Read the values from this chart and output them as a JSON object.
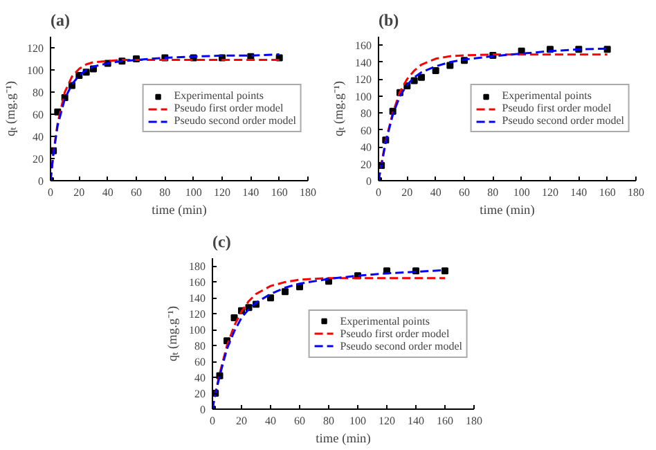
{
  "chart_data": [
    {
      "type": "line",
      "title": "(a)",
      "xlabel": "time (min)",
      "ylabel": "qₜ (mg.g⁻¹)",
      "xlim": [
        0,
        180
      ],
      "xticks": [
        0,
        20,
        40,
        60,
        80,
        100,
        120,
        140,
        160,
        180
      ],
      "ylim": [
        0,
        130
      ],
      "yticks": [
        0,
        20,
        40,
        60,
        80,
        100,
        120
      ],
      "grid": false,
      "legend": "right",
      "x": [
        0,
        2,
        5,
        10,
        15,
        20,
        25,
        30,
        40,
        50,
        60,
        80,
        100,
        120,
        140,
        160
      ],
      "series": [
        {
          "name": "Experimental points",
          "type": "scatter",
          "marker": "square",
          "color": "#000000",
          "values": [
            0,
            27,
            62,
            75,
            86,
            95,
            98,
            101,
            106,
            108,
            110,
            111,
            111,
            111,
            112,
            111
          ]
        },
        {
          "name": "Pseudo first order model",
          "line_style": "dashed",
          "color": "#ff0000",
          "values": [
            0,
            25,
            52,
            80,
            94,
            101,
            105,
            107,
            108,
            109,
            109,
            109,
            109,
            109,
            109,
            109
          ]
        },
        {
          "name": "Pseudo second order model",
          "line_style": "dashed",
          "color": "#0000ff",
          "values": [
            0,
            24,
            50,
            74,
            87,
            95,
            100,
            103,
            106,
            108,
            109,
            111,
            112,
            113,
            113,
            114
          ]
        }
      ]
    },
    {
      "type": "line",
      "title": "(b)",
      "xlabel": "time (min)",
      "ylabel": "qₜ (mg.g⁻¹)",
      "xlim": [
        0,
        180
      ],
      "xticks": [
        0,
        20,
        40,
        60,
        80,
        100,
        120,
        140,
        160,
        180
      ],
      "ylim": [
        0,
        170
      ],
      "yticks": [
        0,
        20,
        40,
        60,
        80,
        100,
        120,
        140,
        160
      ],
      "grid": false,
      "legend": "right",
      "x": [
        0,
        2,
        5,
        10,
        15,
        20,
        25,
        30,
        40,
        50,
        60,
        80,
        100,
        120,
        140,
        160
      ],
      "series": [
        {
          "name": "Experimental points",
          "type": "scatter",
          "marker": "square",
          "color": "#000000",
          "values": [
            0,
            18,
            48,
            82,
            104,
            112,
            118,
            122,
            130,
            136,
            142,
            148,
            153,
            155,
            155,
            155
          ]
        },
        {
          "name": "Pseudo first order model",
          "line_style": "dashed",
          "color": "#ff0000",
          "values": [
            0,
            20,
            47,
            80,
            105,
            120,
            130,
            137,
            144,
            147,
            148,
            149,
            149,
            149,
            149,
            149
          ]
        },
        {
          "name": "Pseudo second order model",
          "line_style": "dashed",
          "color": "#0000ff",
          "values": [
            0,
            18,
            45,
            78,
            100,
            113,
            122,
            128,
            135,
            140,
            143,
            147,
            150,
            153,
            155,
            156
          ]
        }
      ]
    },
    {
      "type": "line",
      "title": "(c)",
      "xlabel": "time (min)",
      "ylabel": "qₜ (mg.g⁻¹)",
      "xlim": [
        0,
        180
      ],
      "xticks": [
        0,
        20,
        40,
        60,
        80,
        100,
        120,
        140,
        160,
        180
      ],
      "ylim": [
        0,
        190
      ],
      "yticks": [
        0,
        20,
        40,
        60,
        80,
        100,
        120,
        140,
        160,
        180
      ],
      "grid": false,
      "legend": "right",
      "x": [
        0,
        2,
        5,
        10,
        15,
        20,
        25,
        30,
        40,
        50,
        60,
        80,
        100,
        120,
        140,
        160
      ],
      "series": [
        {
          "name": "Experimental points",
          "type": "scatter",
          "marker": "square",
          "color": "#000000",
          "values": [
            0,
            20,
            42,
            86,
            115,
            124,
            128,
            132,
            140,
            148,
            154,
            161,
            168,
            174,
            174,
            174
          ]
        },
        {
          "name": "Pseudo first order model",
          "line_style": "dashed",
          "color": "#ff0000",
          "values": [
            0,
            20,
            45,
            80,
            105,
            123,
            136,
            145,
            155,
            160,
            163,
            165,
            165,
            165,
            165,
            165
          ]
        },
        {
          "name": "Pseudo second order model",
          "line_style": "dashed",
          "color": "#0000ff",
          "values": [
            0,
            19,
            42,
            76,
            98,
            115,
            126,
            134,
            145,
            153,
            158,
            164,
            168,
            171,
            173,
            175
          ]
        }
      ]
    }
  ]
}
